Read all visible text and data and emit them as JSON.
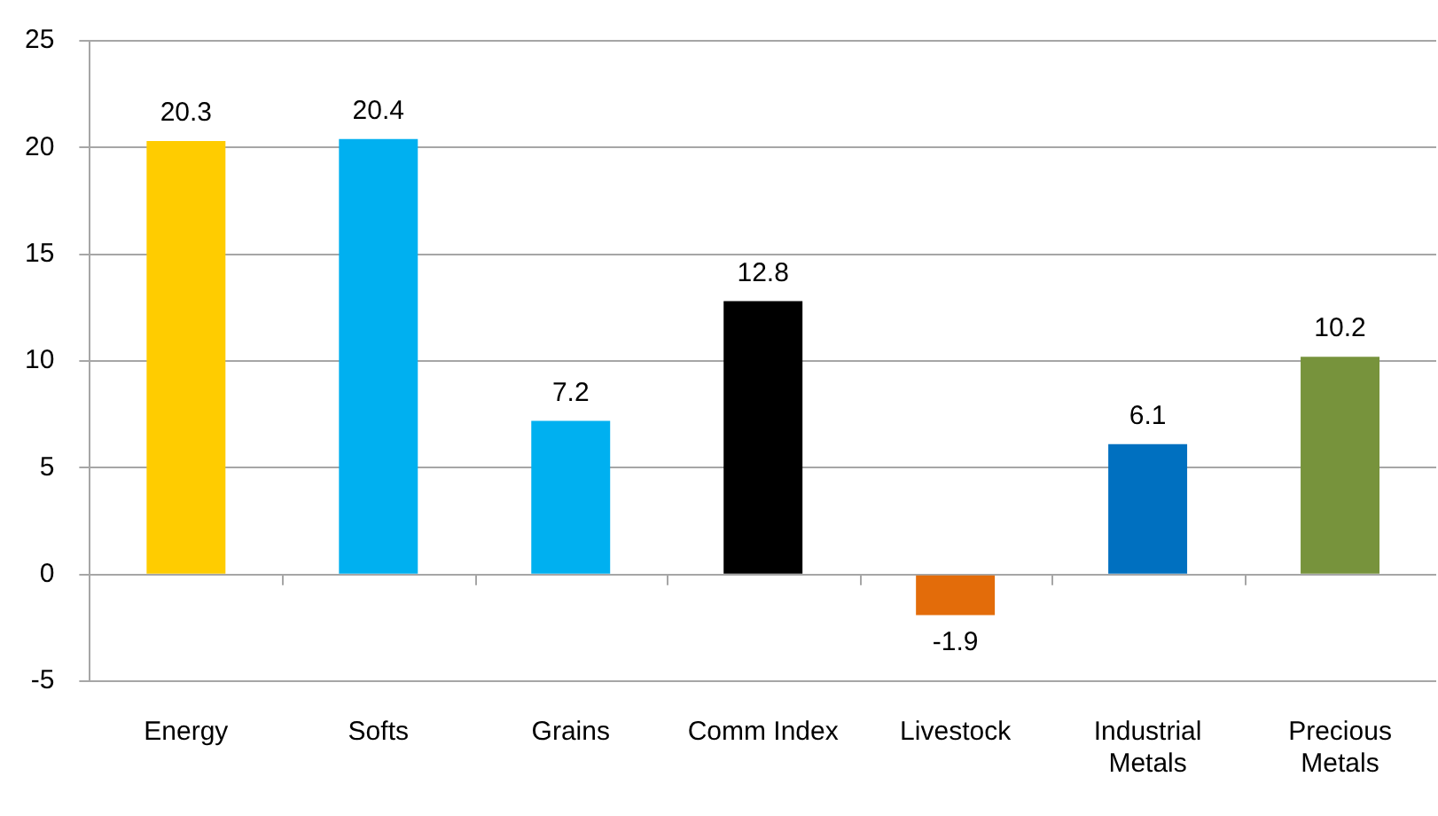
{
  "chart_data": {
    "type": "bar",
    "categories": [
      "Energy",
      "Softs",
      "Grains",
      "Comm Index",
      "Livestock",
      "Industrial Metals",
      "Precious Metals"
    ],
    "values": [
      20.3,
      20.4,
      7.2,
      12.8,
      -1.9,
      6.1,
      10.2
    ],
    "colors": [
      "#ffcc00",
      "#00b0f0",
      "#00b0f0",
      "#000000",
      "#e36c0a",
      "#0070c0",
      "#77933c"
    ],
    "ylim": [
      -5,
      25
    ],
    "yticks": [
      -5,
      0,
      5,
      10,
      15,
      20,
      25
    ],
    "grid": "y",
    "data_labels": true
  }
}
